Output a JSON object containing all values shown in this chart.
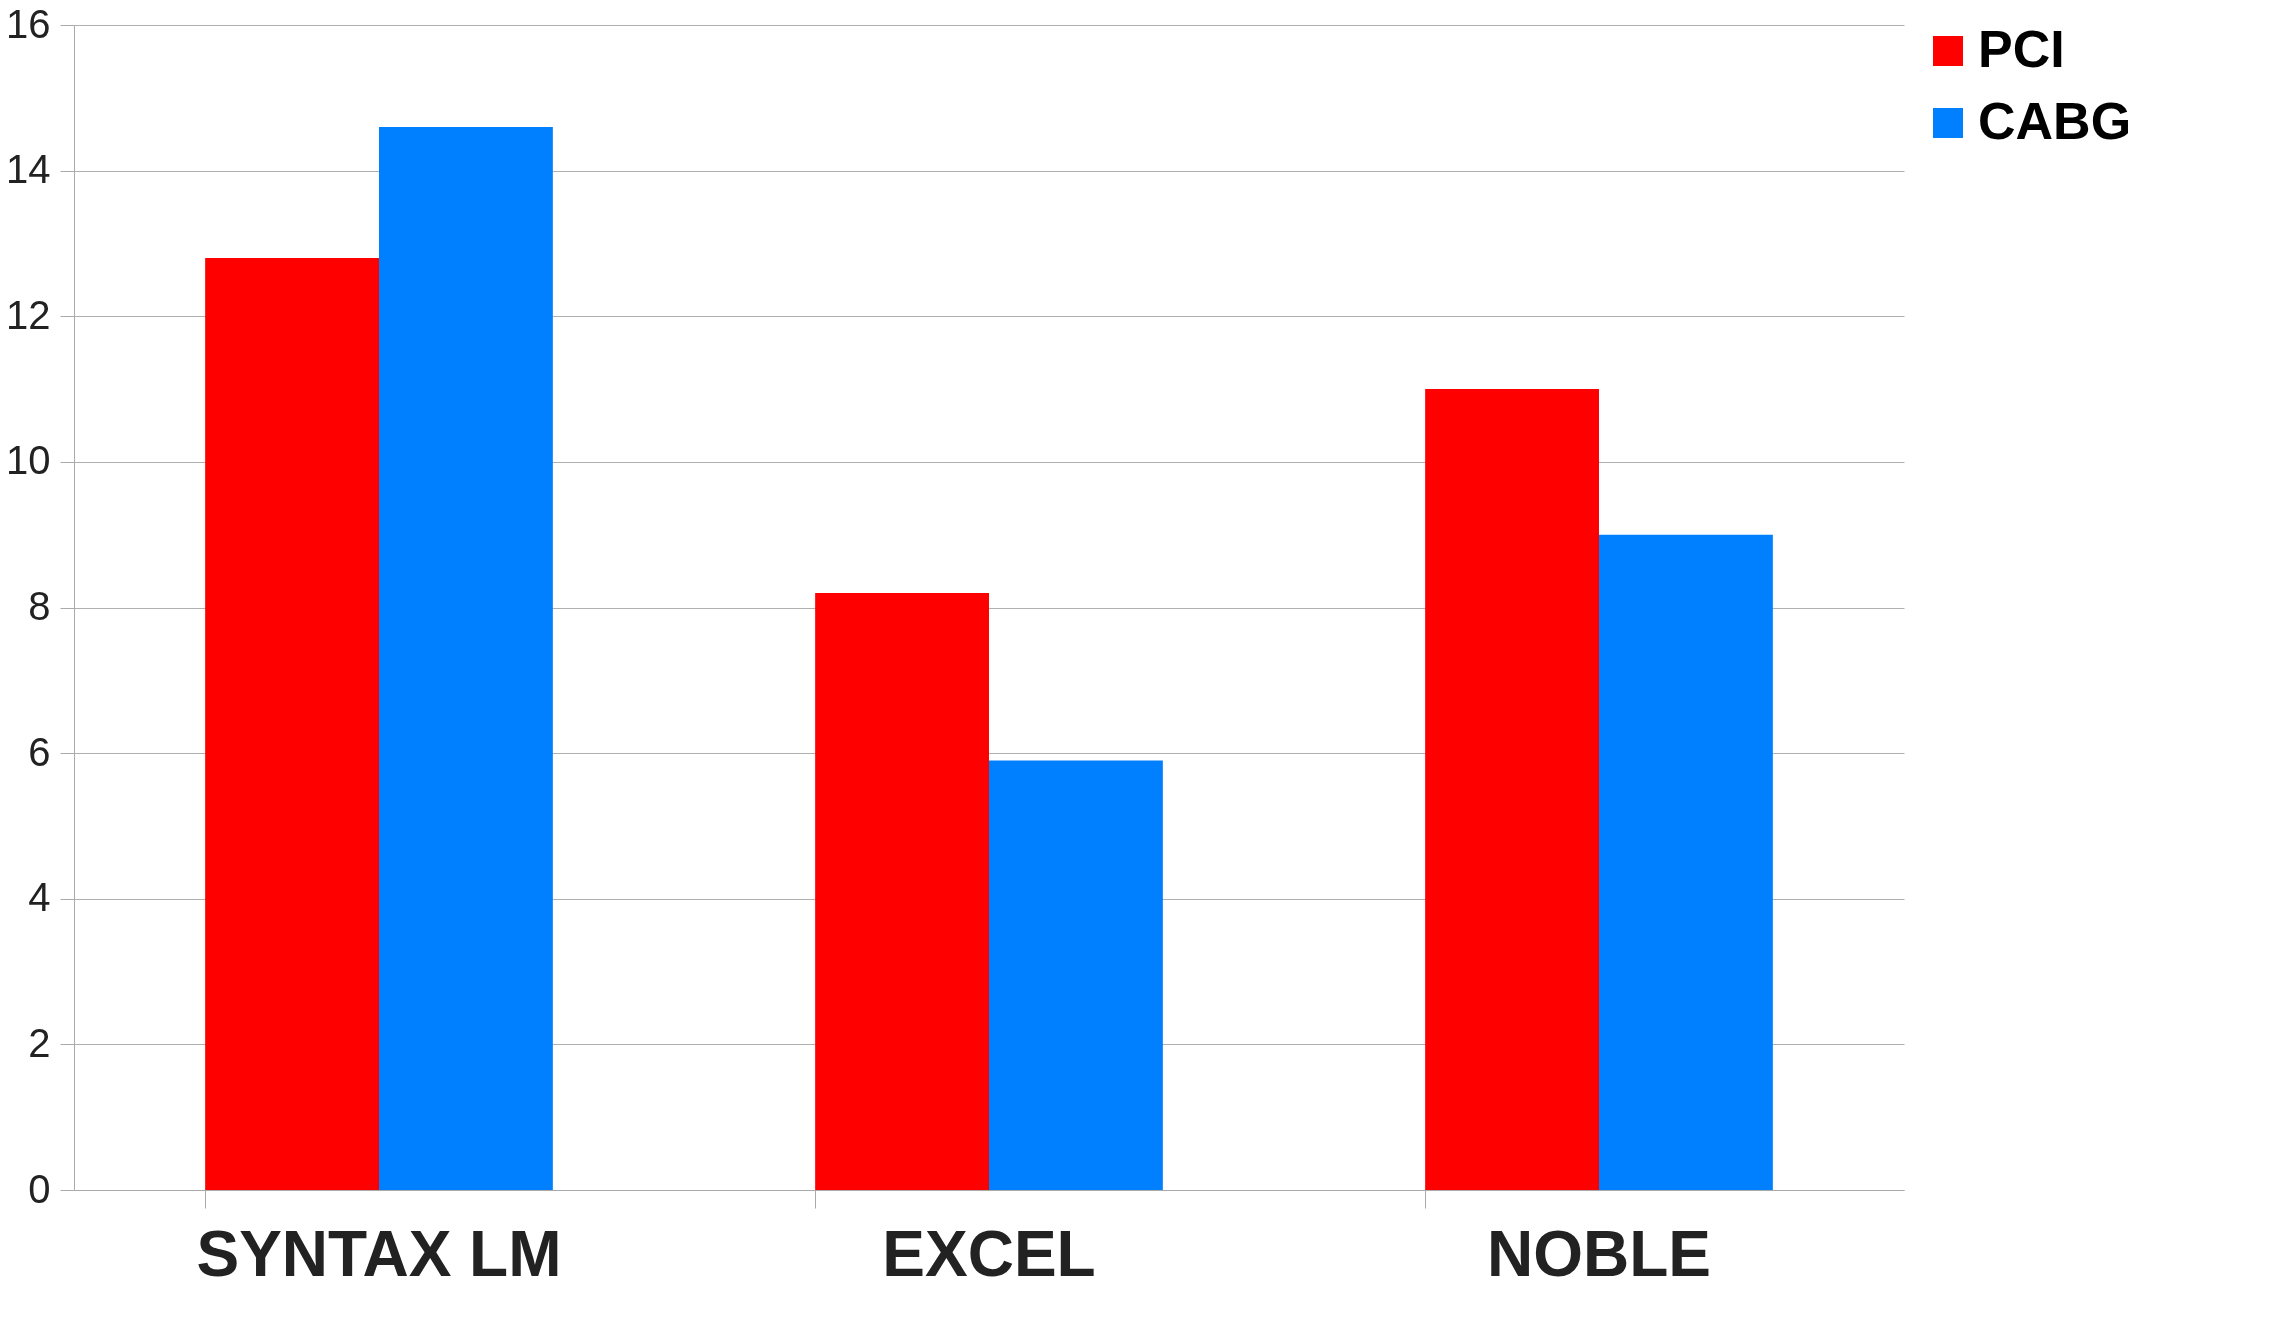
{
  "chart_data": {
    "type": "bar",
    "categories": [
      "SYNTAX LM",
      "EXCEL",
      "NOBLE"
    ],
    "series": [
      {
        "name": "PCI",
        "color": "#ff0000",
        "values": [
          12.8,
          8.2,
          11.0
        ]
      },
      {
        "name": "CABG",
        "color": "#0080ff",
        "values": [
          14.6,
          5.9,
          9.0
        ]
      }
    ],
    "ylim": [
      0,
      16
    ],
    "yticks": [
      0,
      2,
      4,
      6,
      8,
      10,
      12,
      14,
      16
    ],
    "grid": "y",
    "legend": "right"
  }
}
